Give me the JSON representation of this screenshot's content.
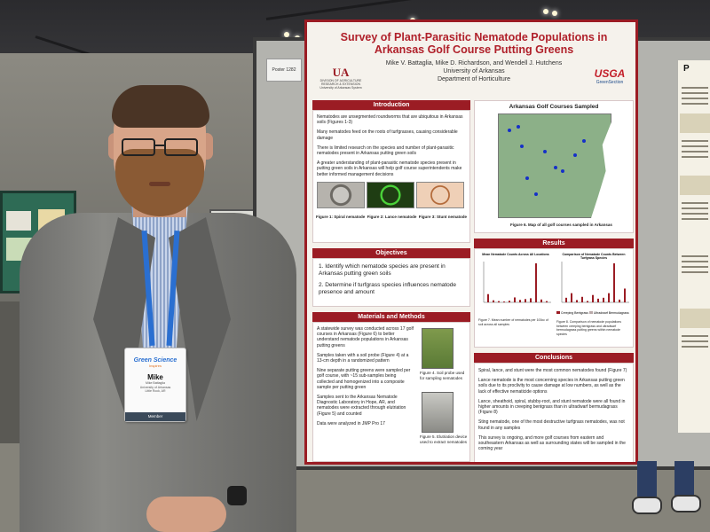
{
  "poster": {
    "title": "Survey of Plant-Parasitic Nematode Populations in Arkansas Golf Course Putting Greens",
    "authors": "Mike V. Battaglia, Mike D. Richardson, and Wendell J. Hutchens",
    "affiliation": "University of Arkansas",
    "department": "Department of Horticulture",
    "logo_left": "UA",
    "logo_left_sub1": "DIVISION OF AGRICULTURE",
    "logo_left_sub2": "RESEARCH & EXTENSION",
    "logo_left_sub3": "University of Arkansas System",
    "logo_right": "USGA",
    "logo_right_sub": "GreenSection",
    "introduction": {
      "heading": "Introduction",
      "bullets": [
        "Nematodes are unsegmented roundworms that are ubiquitous in Arkansas soils (Figures 1-3)",
        "Many nematodes feed on the roots of turfgrasses, causing considerable damage",
        "There is limited research on the species and number of plant-parasitic nematodes present in Arkansas putting green soils",
        "A greater understanding of plant-parasitic nematode species present in putting green soils in Arkansas will help golf course superintendents make better informed management decisions"
      ],
      "figure_captions": [
        "Figure 1: Spiral nematode",
        "Figure 2: Lance nematode",
        "Figure 3: Stunt nematode"
      ]
    },
    "objectives": {
      "heading": "Objectives",
      "items": [
        "1. Identify which nematode species are present in Arkansas putting green soils",
        "2. Determine if turfgrass species influences nematode presence and amount"
      ]
    },
    "methods": {
      "heading": "Materials and Methods",
      "bullets": [
        "A statewide survey was conducted across 17 golf courses in Arkansas (Figure 6) to better understand nematode populations in Arkansas putting greens",
        "Samples taken with a soil probe (Figure 4) at a 13-cm depth in a randomized pattern",
        "Nine separate putting greens were sampled per golf course, with ~15 sub-samples being collected and homogenized into a composite sample per putting green",
        "Samples sent to the Arkansas Nematode Diagnostic Laboratory in Hope, AR, and nematodes were extracted through elutriation (Figure 5) and counted",
        "Data were analyzed in JMP Pro 17"
      ],
      "fig4": "Figure 4. Soil probe used for sampling nematodes",
      "fig5": "Figure 5. Elutriation device used to extract nematodes"
    },
    "map": {
      "heading": "Arkansas Golf Courses Sampled",
      "caption": "Figure 6. Map of all golf courses sampled in Arkansas"
    },
    "results": {
      "heading": "Results",
      "chart1_title": "Mean Nematode Counts Across All Locations",
      "chart2_title": "Comparison of Nematode Counts Between Turfgrass Species",
      "chart1_caption": "Figure 7. Mean number of nematodes per 100cc of soil across all samples",
      "chart2_caption": "Figure 8. Comparison of nematode populations between creeping bentgrass and ultradwarf bermudagrass putting greens within nematode species",
      "legend1": "Creeping Bentgrass",
      "legend2": "Ultradwarf Bermudagrass"
    },
    "conclusions": {
      "heading": "Conclusions",
      "bullets": [
        "Spiral, lance, and stunt were the most common nematodes found (Figure 7)",
        "Lance nematode is the most concerning species in Arkansas putting green soils due to its proclivity to cause damage at low numbers, as well as the lack of effective nematicide options",
        "Lance, sheathoid, spiral, stubby-root, and stunt nematode were all found in higher amounts in creeping bentgrass than in ultradwarf bermudagrass (Figure 8)",
        "Sting nematode, one of the most destructive turfgrass nematodes, was not found in any samples",
        "This survey is ongoing, and more golf courses from eastern and southeastern Arkansas as well as surrounding states will be sampled in the coming year"
      ]
    }
  },
  "poster_number": "Poster 1282",
  "right_poster_logo": "P",
  "badge": {
    "event": "Green Science",
    "event_sub": "Inspires",
    "name": "Mike",
    "fullname": "Mike Battaglia",
    "org": "University of Arkansas",
    "location": "Little Rock, AR",
    "role": "Member"
  },
  "chart1_values": [
    2,
    0.5,
    0.3,
    0.2,
    0.4,
    1.2,
    0.6,
    0.8,
    1.0,
    9.5,
    0.7,
    0.3
  ],
  "chart2_values": [
    1,
    2,
    0.5,
    1.2,
    0.3,
    1.6,
    0.8,
    1.0,
    2.0,
    8.5,
    0.6,
    3.0
  ]
}
